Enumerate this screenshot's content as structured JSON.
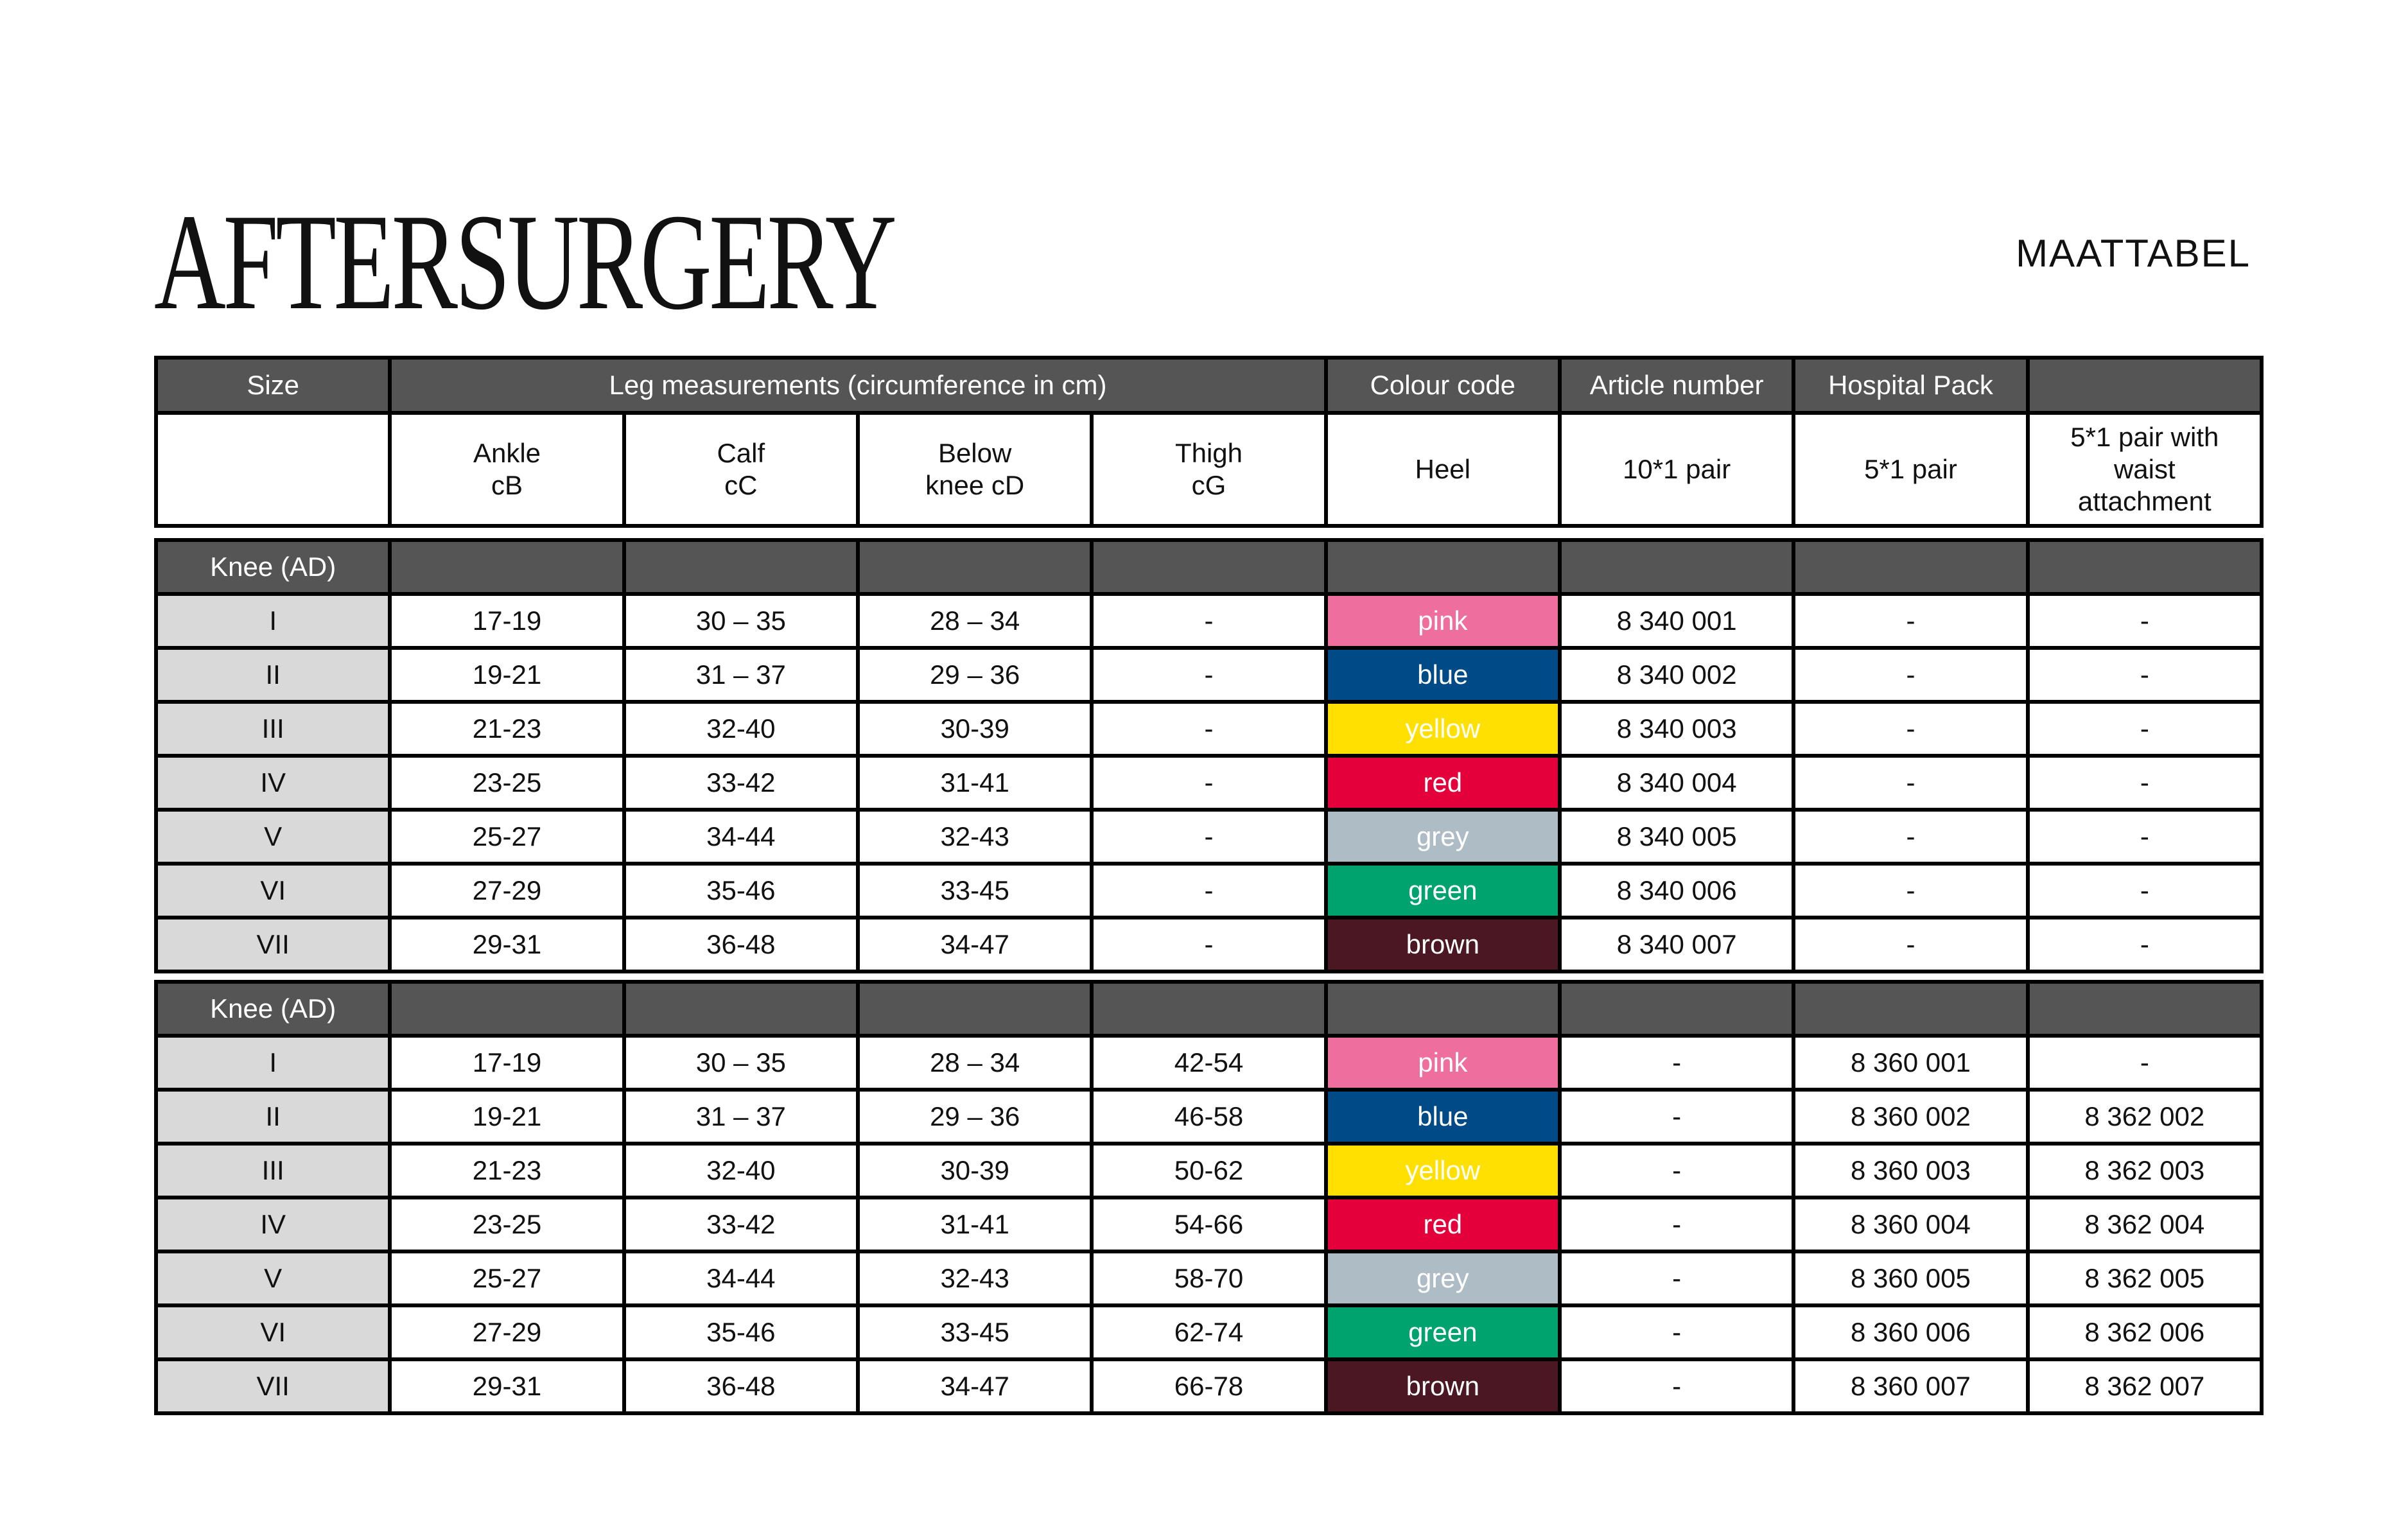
{
  "logo": "AFTERSURGERY",
  "title": "MAATTABEL",
  "header": {
    "size": "Size",
    "leg": "Leg measurements (circumference in cm)",
    "colour": "Colour code",
    "article": "Article number",
    "hospital": "Hospital Pack",
    "sub": [
      "",
      "Ankle\ncB",
      "Calf\ncC",
      "Below\nknee cD",
      "Thigh\ncG",
      "Heel",
      "10*1 pair",
      "5*1 pair",
      "5*1 pair with\nwaist\nattachment"
    ]
  },
  "colors": {
    "pink": "#ee6f9d",
    "blue": "#004a87",
    "yellow": "#ffe000",
    "red": "#e4003a",
    "grey": "#aebcc5",
    "green": "#00a36e",
    "brown": "#4b1722",
    "header": "#555555",
    "size_cell": "#d9d9d9"
  },
  "sections": [
    {
      "label": "Knee (AD)",
      "rows": [
        [
          "I",
          "17-19",
          "30 – 35",
          "28 – 34",
          "-",
          "pink",
          "8 340 001",
          "-",
          "-"
        ],
        [
          "II",
          "19-21",
          "31 – 37",
          "29 – 36",
          "-",
          "blue",
          "8 340 002",
          "-",
          "-"
        ],
        [
          "III",
          "21-23",
          "32-40",
          "30-39",
          "-",
          "yellow",
          "8 340 003",
          "-",
          "-"
        ],
        [
          "IV",
          "23-25",
          "33-42",
          "31-41",
          "-",
          "red",
          "8 340 004",
          "-",
          "-"
        ],
        [
          "V",
          "25-27",
          "34-44",
          "32-43",
          "-",
          "grey",
          "8 340 005",
          "-",
          "-"
        ],
        [
          "VI",
          "27-29",
          "35-46",
          "33-45",
          "-",
          "green",
          "8 340 006",
          "-",
          "-"
        ],
        [
          "VII",
          "29-31",
          "36-48",
          "34-47",
          "-",
          "brown",
          "8 340 007",
          "-",
          "-"
        ]
      ]
    },
    {
      "label": "Knee (AD)",
      "rows": [
        [
          "I",
          "17-19",
          "30 – 35",
          "28 – 34",
          "42-54",
          "pink",
          "-",
          "8 360 001",
          "-"
        ],
        [
          "II",
          "19-21",
          "31 – 37",
          "29 – 36",
          "46-58",
          "blue",
          "-",
          "8 360 002",
          "8 362 002"
        ],
        [
          "III",
          "21-23",
          "32-40",
          "30-39",
          "50-62",
          "yellow",
          "-",
          "8 360 003",
          "8 362 003"
        ],
        [
          "IV",
          "23-25",
          "33-42",
          "31-41",
          "54-66",
          "red",
          "-",
          "8 360 004",
          "8 362 004"
        ],
        [
          "V",
          "25-27",
          "34-44",
          "32-43",
          "58-70",
          "grey",
          "-",
          "8 360 005",
          "8 362 005"
        ],
        [
          "VI",
          "27-29",
          "35-46",
          "33-45",
          "62-74",
          "green",
          "-",
          "8 360 006",
          "8 362 006"
        ],
        [
          "VII",
          "29-31",
          "36-48",
          "34-47",
          "66-78",
          "brown",
          "-",
          "8 360 007",
          "8 362 007"
        ]
      ]
    }
  ]
}
